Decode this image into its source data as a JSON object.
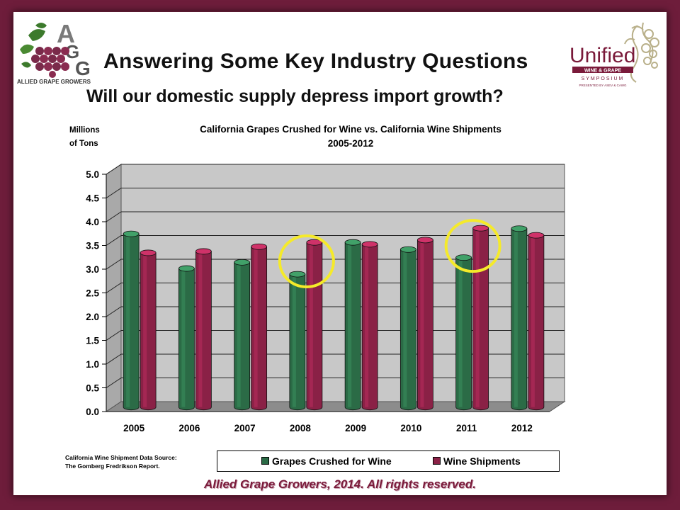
{
  "slide": {
    "title": "Answering Some Key Industry Questions",
    "subtitle": "Will our domestic supply depress import growth?",
    "footer": "Allied Grape Growers, 2014.  All rights reserved.",
    "source_line1": "California Wine Shipment Data Source:",
    "source_line2": "The Gomberg Fredrikson Report.",
    "logo_left_text": "ALLIED GRAPE GROWERS",
    "logo_left_letters": [
      "A",
      "G",
      "G"
    ],
    "logo_right_text": "Unified",
    "logo_right_sub1": "WINE & GRAPE",
    "logo_right_sub2": "SYMPOSIUM",
    "logo_right_sub3": "PRESENTED BY ASEV & CAWG"
  },
  "colors": {
    "frame": "#6e1d3b",
    "series_grapes": "#2b6b46",
    "series_wine": "#8a2146",
    "highlight_circle": "#f5ea2a",
    "plot_back": "#c8c8c8"
  },
  "chart_data": {
    "type": "bar",
    "title_line1": "California Grapes Crushed for Wine vs. California Wine Shipments",
    "title_line2": "2005-2012",
    "ylabel_line1": "Millions",
    "ylabel_line2": "of Tons",
    "xlabel": "",
    "categories": [
      "2005",
      "2006",
      "2007",
      "2008",
      "2009",
      "2010",
      "2011",
      "2012"
    ],
    "series": [
      {
        "name": "Grapes Crushed for Wine",
        "values": [
          3.65,
          2.92,
          3.05,
          2.8,
          3.47,
          3.32,
          3.15,
          3.76
        ]
      },
      {
        "name": "Wine Shipments",
        "values": [
          3.25,
          3.28,
          3.38,
          3.47,
          3.43,
          3.52,
          3.77,
          3.62
        ]
      }
    ],
    "ylim": [
      0,
      5.0
    ],
    "yticks": [
      "0.0",
      "0.5",
      "1.0",
      "1.5",
      "2.0",
      "2.5",
      "3.0",
      "3.5",
      "4.0",
      "4.5",
      "5.0"
    ],
    "grid": true,
    "legend": "bottom",
    "highlighted_categories": [
      "2008",
      "2011"
    ]
  }
}
